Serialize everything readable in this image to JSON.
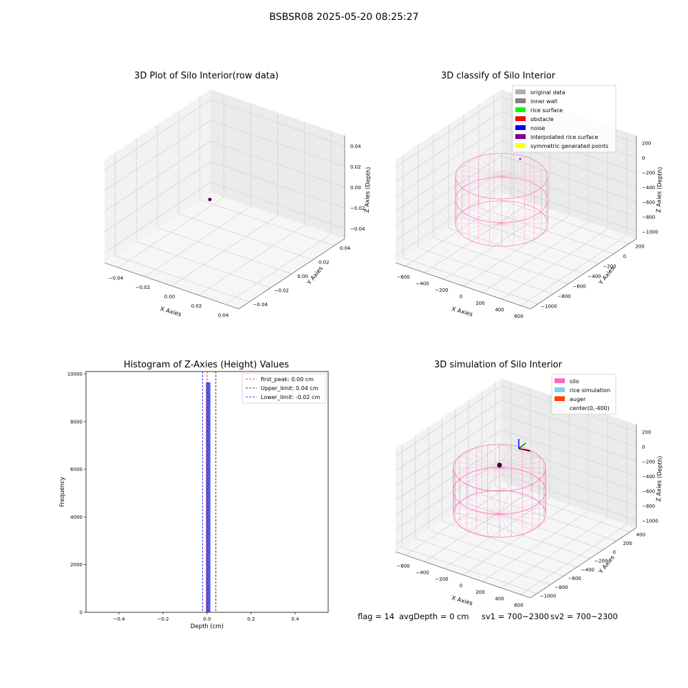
{
  "suptitle": "BSBSR08 2025-05-20 08:25:27",
  "panels": {
    "raw": {
      "title": "3D Plot of Silo Interior(row data)",
      "x_ticks": [
        "−0.04",
        "−0.02",
        "0.00",
        "0.02",
        "0.04"
      ],
      "y_ticks": [
        "−0.04",
        "−0.02",
        "0.00",
        "0.02",
        "0.04"
      ],
      "z_ticks": [
        "0.04",
        "0.02",
        "0.00",
        "−0.02",
        "−0.04"
      ],
      "xlabel": "X Axies",
      "ylabel": "Y Axies",
      "zlabel": "Z Axies (Depth)"
    },
    "classify": {
      "title": "3D classify of Silo Interior",
      "x_ticks": [
        "−600",
        "−400",
        "−200",
        "0",
        "200",
        "400",
        "600"
      ],
      "y_ticks": [
        "−1000",
        "−800",
        "−600",
        "−400",
        "−200",
        "0",
        "200"
      ],
      "z_ticks": [
        "200",
        "0",
        "−200",
        "−400",
        "−600",
        "−800",
        "−1000"
      ],
      "xlabel": "X Axies",
      "ylabel": "Y Axies",
      "zlabel": "Z Axies (Depth)",
      "legend": [
        {
          "label": "original data",
          "color": "#b0b0b0"
        },
        {
          "label": "inner wall",
          "color": "#808080"
        },
        {
          "label": "rice surface",
          "color": "#00ff00"
        },
        {
          "label": "obstacle",
          "color": "#ff0000"
        },
        {
          "label": "noise",
          "color": "#0000ff"
        },
        {
          "label": "interpolated rice surface",
          "color": "#800080"
        },
        {
          "label": "symmetric generated points",
          "color": "#ffff00"
        }
      ]
    },
    "simulation": {
      "title": "3D simulation of Silo Interior",
      "x_ticks": [
        "−600",
        "−400",
        "−200",
        "0",
        "200",
        "400",
        "600"
      ],
      "y_ticks": [
        "−1000",
        "−800",
        "−600",
        "−400",
        "−200",
        "0",
        "200",
        "400"
      ],
      "z_ticks": [
        "200",
        "0",
        "−200",
        "−400",
        "−600",
        "−800",
        "−1000"
      ],
      "xlabel": "X Axies",
      "ylabel": "Y Axies",
      "zlabel": "Z Axies (Depth)",
      "legend": [
        {
          "label": "silo",
          "color": "#ff69b4"
        },
        {
          "label": "rice simulation",
          "color": "#87ceeb"
        },
        {
          "label": "auger",
          "color": "#ff4500"
        },
        {
          "label": "center(0,-400)",
          "color": "none"
        }
      ]
    }
  },
  "chart_data": [
    {
      "type": "bar",
      "title": "Histogram of Z-Axies (Height) Values",
      "xlabel": "Depth (cm)",
      "ylabel": "Frequency",
      "xlim": [
        -0.55,
        0.55
      ],
      "ylim": [
        0,
        10100
      ],
      "x_ticks": [
        -0.4,
        -0.2,
        0.0,
        0.2,
        0.4
      ],
      "x_tick_labels": [
        "−0.4",
        "−0.2",
        "0.0",
        "0.2",
        "0.4"
      ],
      "y_ticks": [
        0,
        2000,
        4000,
        6000,
        8000,
        10000
      ],
      "bars": [
        {
          "x0": -0.005,
          "x1": 0.015,
          "value": 9650
        }
      ],
      "bar_color": "#4b4be0",
      "vlines": [
        {
          "label": "first_peak: 0.00 cm",
          "x": 0.0,
          "color": "#ff0000"
        },
        {
          "label": "Upper_limit: 0.04 cm",
          "x": 0.04,
          "color": "#000000"
        },
        {
          "label": "Lower_limit: -0.02 cm",
          "x": -0.02,
          "color": "#0000ff"
        }
      ],
      "legend_position": "top-right"
    }
  ],
  "footer": {
    "flag": "flag = 14",
    "avg_depth": "avgDepth = 0 cm",
    "sv1": "sv1 = 700~2300",
    "sv2": "sv2 = 700~2300"
  }
}
